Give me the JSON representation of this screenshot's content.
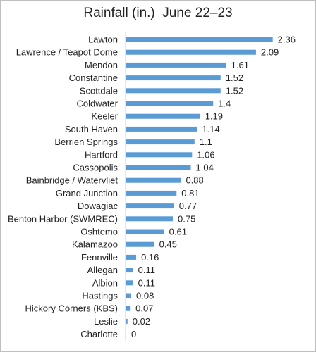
{
  "chart_data": {
    "type": "bar",
    "orientation": "horizontal",
    "title": "Rainfall (in.)  June 22–23",
    "xlabel": "",
    "ylabel": "",
    "xlim": [
      0,
      2.5
    ],
    "grid": false,
    "bar_color": "#5b9bd5",
    "categories": [
      "Lawton",
      "Lawrence / Teapot Dome",
      "Mendon",
      "Constantine",
      "Scottdale",
      "Coldwater",
      "Keeler",
      "South Haven",
      "Berrien Springs",
      "Hartford",
      "Cassopolis",
      "Bainbridge / Watervliet",
      "Grand Junction",
      "Dowagiac",
      "Benton Harbor (SWMREC)",
      "Oshtemo",
      "Kalamazoo",
      "Fennville",
      "Allegan",
      "Albion",
      "Hastings",
      "Hickory Corners (KBS)",
      "Leslie",
      "Charlotte"
    ],
    "values": [
      2.36,
      2.09,
      1.61,
      1.52,
      1.52,
      1.4,
      1.19,
      1.14,
      1.1,
      1.06,
      1.04,
      0.88,
      0.81,
      0.77,
      0.75,
      0.61,
      0.45,
      0.16,
      0.11,
      0.11,
      0.08,
      0.07,
      0.02,
      0
    ],
    "value_labels": [
      "2.36",
      "2.09",
      "1.61",
      "1.52",
      "1.52",
      "1.4",
      "1.19",
      "1.14",
      "1.1",
      "1.06",
      "1.04",
      "0.88",
      "0.81",
      "0.77",
      "0.75",
      "0.61",
      "0.45",
      "0.16",
      "0.11",
      "0.11",
      "0.08",
      "0.07",
      "0.02",
      "0"
    ]
  }
}
